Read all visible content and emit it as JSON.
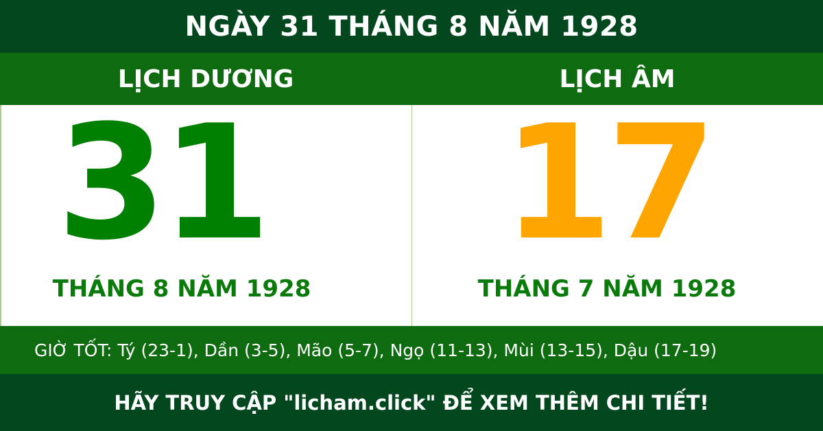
{
  "title": "NGÀY 31 THÁNG 8 NĂM 1928",
  "solar": {
    "label": "LỊCH DƯƠNG",
    "day": "31",
    "month_year": "THÁNG 8 NĂM 1928"
  },
  "lunar": {
    "label": "LỊCH ÂM",
    "day": "17",
    "month_year": "THÁNG 7 NĂM 1928"
  },
  "good_hours": "GIỜ TỐT: Tý (23-1), Dần (3-5), Mão (5-7), Ngọ (11-13), Mùi (13-15), Dậu (17-19)",
  "footer": "HÃY TRUY CẬP \"licham.click\" ĐỂ XEM THÊM CHI TIẾT!",
  "colors": {
    "dark_green": "#03471f",
    "band_green": "#0f6b10",
    "solar_day": "#008000",
    "lunar_day": "#ffa500"
  }
}
